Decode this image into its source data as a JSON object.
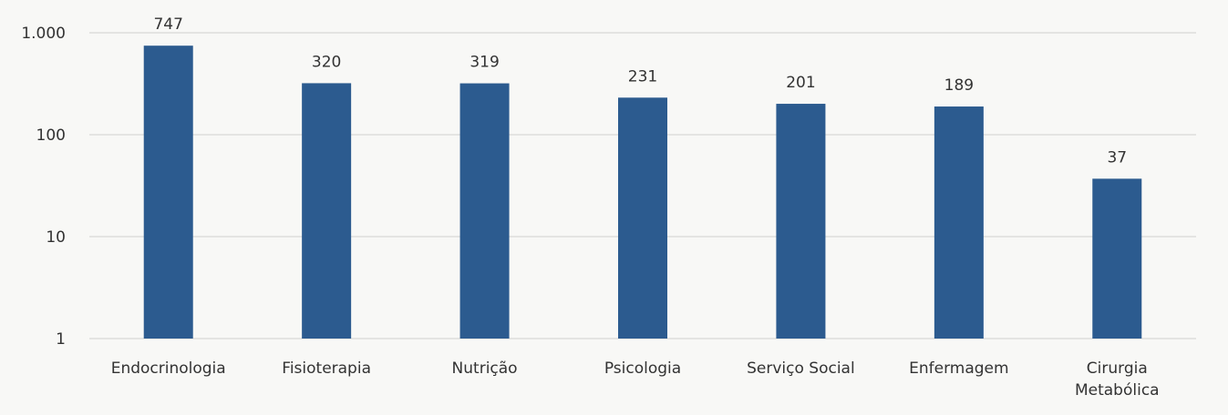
{
  "chart_data": {
    "type": "bar",
    "title": "",
    "xlabel": "",
    "ylabel": "",
    "yscale": "log",
    "ylim": [
      1,
      1000
    ],
    "ytick_values": [
      1,
      10,
      100,
      1000
    ],
    "ytick_labels": [
      "1",
      "10",
      "100",
      "1.000"
    ],
    "grid": true,
    "categories": [
      [
        "Endocrinologia"
      ],
      [
        "Fisioterapia"
      ],
      [
        "Nutrição"
      ],
      [
        "Psicologia"
      ],
      [
        "Serviço Social"
      ],
      [
        "Enfermagem"
      ],
      [
        "Cirurgia",
        "Metabólica"
      ]
    ],
    "values": [
      747,
      320,
      319,
      231,
      201,
      189,
      37
    ],
    "data_labels": [
      "747",
      "320",
      "319",
      "231",
      "201",
      "189",
      "37"
    ],
    "colors": {
      "bar": "#2c5b8f",
      "grid": "#cfcfcf",
      "text": "#333333",
      "background": "#f8f8f6"
    }
  }
}
